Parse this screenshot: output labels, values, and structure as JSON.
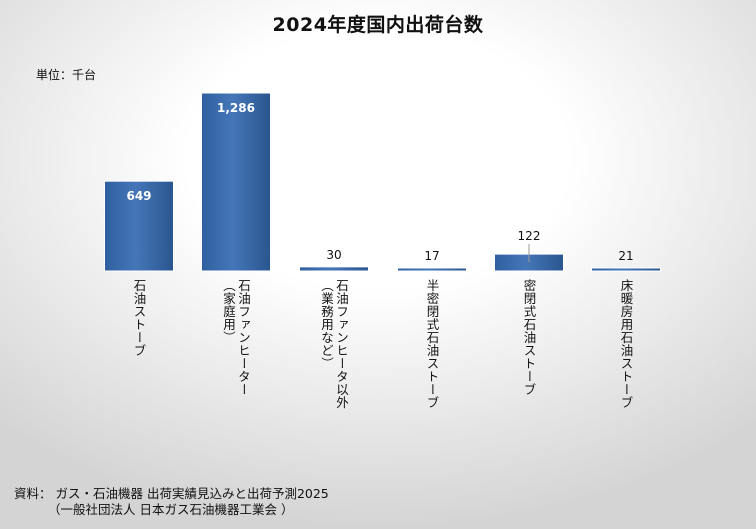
{
  "chart_data": {
    "type": "bar",
    "title": "2024年度国内出荷台数",
    "unit_label": "単位：千台",
    "categories": [
      [
        "石油ストーブ"
      ],
      [
        "石油ファンヒーター",
        "（家庭用）"
      ],
      [
        "石油ファンヒータ以外",
        "（業務用など）"
      ],
      [
        "半密閉式石油ストーブ"
      ],
      [
        "密閉式石油ストーブ"
      ],
      [
        "床暖房用石油ストーブ"
      ]
    ],
    "values": [
      649,
      1286,
      30,
      17,
      122,
      21
    ],
    "value_labels": [
      "649",
      "1,286",
      "30",
      "17",
      "122",
      "21"
    ],
    "ylim": [
      0,
      1286
    ],
    "bar_color": "#3f6eae",
    "source": [
      "資料： ガス・石油機器 出荷実績見込みと出荷予測2025",
      "（一般社団法人 日本ガス石油機器工業会 ）"
    ]
  }
}
